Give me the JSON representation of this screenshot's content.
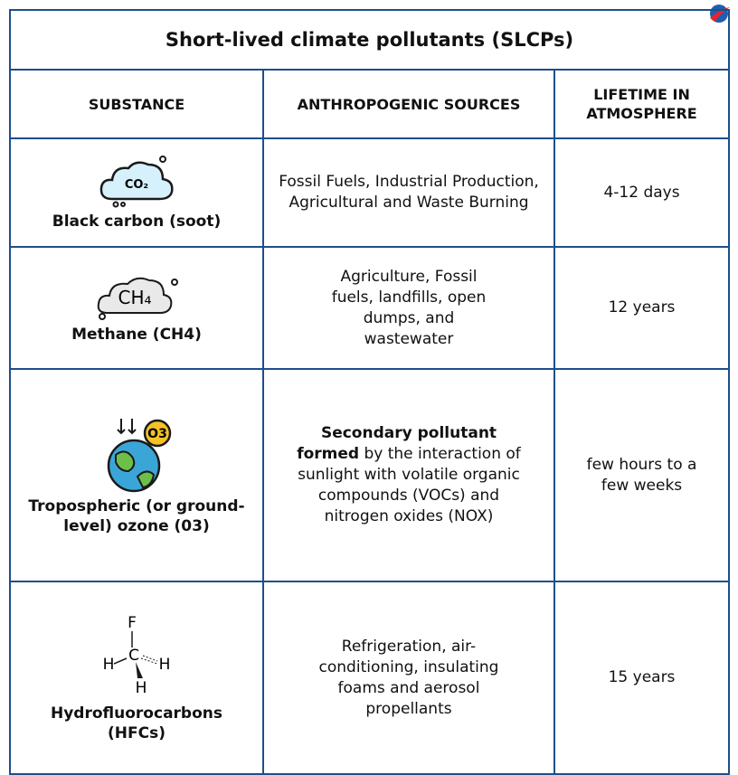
{
  "table": {
    "title": "Short-lived climate pollutants (SLCPs)",
    "headers": [
      "SUBSTANCE",
      "ANTHROPOGENIC SOURCES",
      "LIFETIME IN ATMOSPHERE"
    ],
    "rows": [
      {
        "icon_label": "CO₂",
        "substance": "Black carbon (soot)",
        "sources": "Fossil Fuels, Industrial Production, Agricultural and Waste Burning",
        "lifetime": "4-12 days"
      },
      {
        "icon_label": "CH₄",
        "substance": "Methane (CH4)",
        "sources": "Agriculture, Fossil fuels, landfills, open dumps, and wastewater",
        "lifetime": "12 years"
      },
      {
        "icon_label": "O3",
        "substance": "Tropospheric (or ground-level) ozone (03)",
        "sources_bold": "Secondary pollutant formed",
        "sources": "by the interaction of sunlight with volatile organic compounds (VOCs) and nitrogen oxides (NOX)",
        "lifetime": "few hours to a few weeks"
      },
      {
        "icon_labels": [
          "F",
          "C",
          "H",
          "H",
          "H"
        ],
        "substance": "Hydrofluorocarbons (HFCs)",
        "sources": "Refrigeration, air-conditioning, insulating foams and aerosol propellants",
        "lifetime": "15 years"
      }
    ]
  }
}
